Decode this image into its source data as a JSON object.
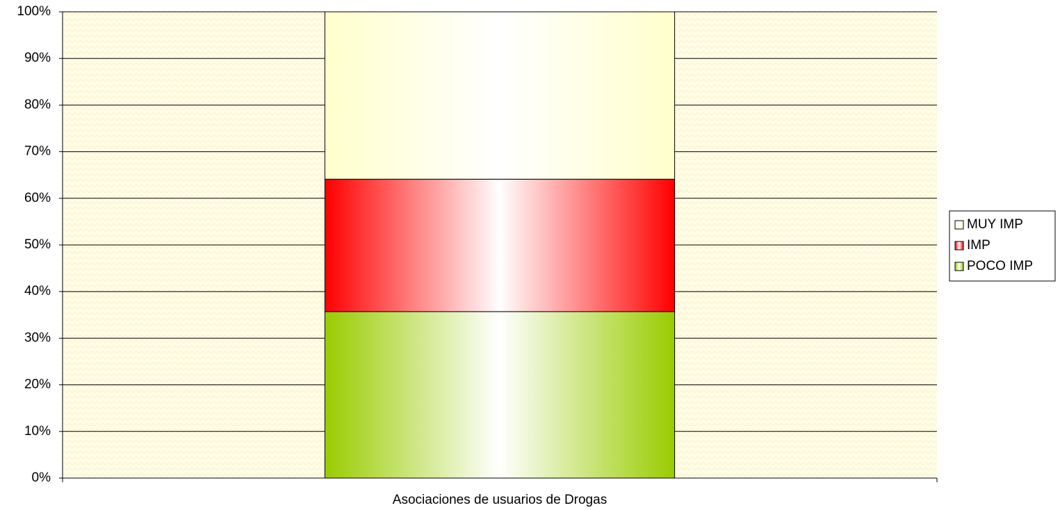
{
  "chart_data": {
    "type": "bar",
    "stacked": true,
    "categories": [
      "Asociaciones de usuarios de Drogas"
    ],
    "series": [
      {
        "name": "POCO IMP",
        "color": "#99cc00",
        "values": [
          35.7
        ]
      },
      {
        "name": "IMP",
        "color": "#ff0000",
        "values": [
          28.4
        ]
      },
      {
        "name": "MUY IMP",
        "color": "#ffffcc",
        "values": [
          35.9
        ]
      }
    ],
    "ylim": [
      0,
      100
    ],
    "yticks": [
      {
        "value": 0,
        "label": "0%"
      },
      {
        "value": 10,
        "label": "10%"
      },
      {
        "value": 20,
        "label": "20%"
      },
      {
        "value": 30,
        "label": "30%"
      },
      {
        "value": 40,
        "label": "40%"
      },
      {
        "value": 50,
        "label": "50%"
      },
      {
        "value": 60,
        "label": "60%"
      },
      {
        "value": 70,
        "label": "70%"
      },
      {
        "value": 80,
        "label": "80%"
      },
      {
        "value": 90,
        "label": "90%"
      },
      {
        "value": 100,
        "label": "100%"
      }
    ],
    "grid": true,
    "legend": "right"
  }
}
